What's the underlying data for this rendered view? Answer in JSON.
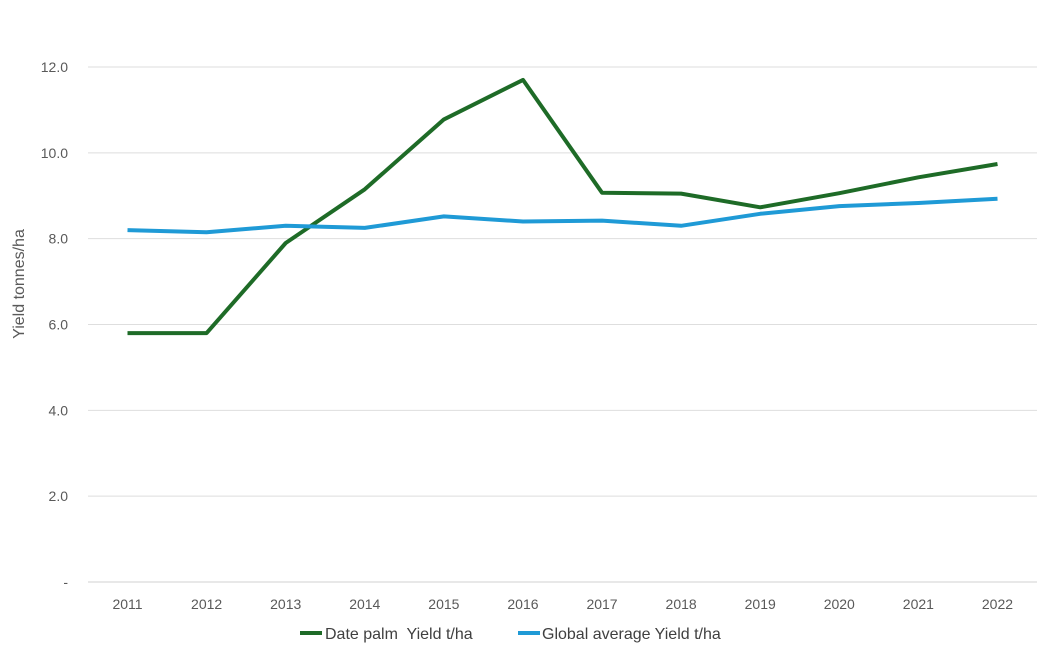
{
  "chart_data": {
    "type": "line",
    "title": "",
    "xlabel": "",
    "ylabel": "Yield tonnes/ha",
    "categories": [
      "2011",
      "2012",
      "2013",
      "2014",
      "2015",
      "2016",
      "2017",
      "2018",
      "2019",
      "2020",
      "2021",
      "2022"
    ],
    "ylim": [
      0,
      12
    ],
    "yticks": [
      0,
      2,
      4,
      6,
      8,
      10,
      12
    ],
    "ytick_labels": [
      "-",
      "2.0",
      "4.0",
      "6.0",
      "8.0",
      "10.0",
      "12.0"
    ],
    "grid": true,
    "legend_position": "bottom",
    "series": [
      {
        "name": "Date palm  Yield t/ha",
        "color": "#1e6b27",
        "values": [
          5.8,
          5.8,
          7.9,
          9.15,
          10.78,
          11.7,
          9.07,
          9.05,
          8.73,
          9.06,
          9.43,
          9.74
        ]
      },
      {
        "name": "Global average Yield t/ha",
        "color": "#1f9ad6",
        "values": [
          8.2,
          8.15,
          8.3,
          8.25,
          8.52,
          8.4,
          8.42,
          8.3,
          8.58,
          8.76,
          8.83,
          8.93
        ]
      }
    ]
  }
}
